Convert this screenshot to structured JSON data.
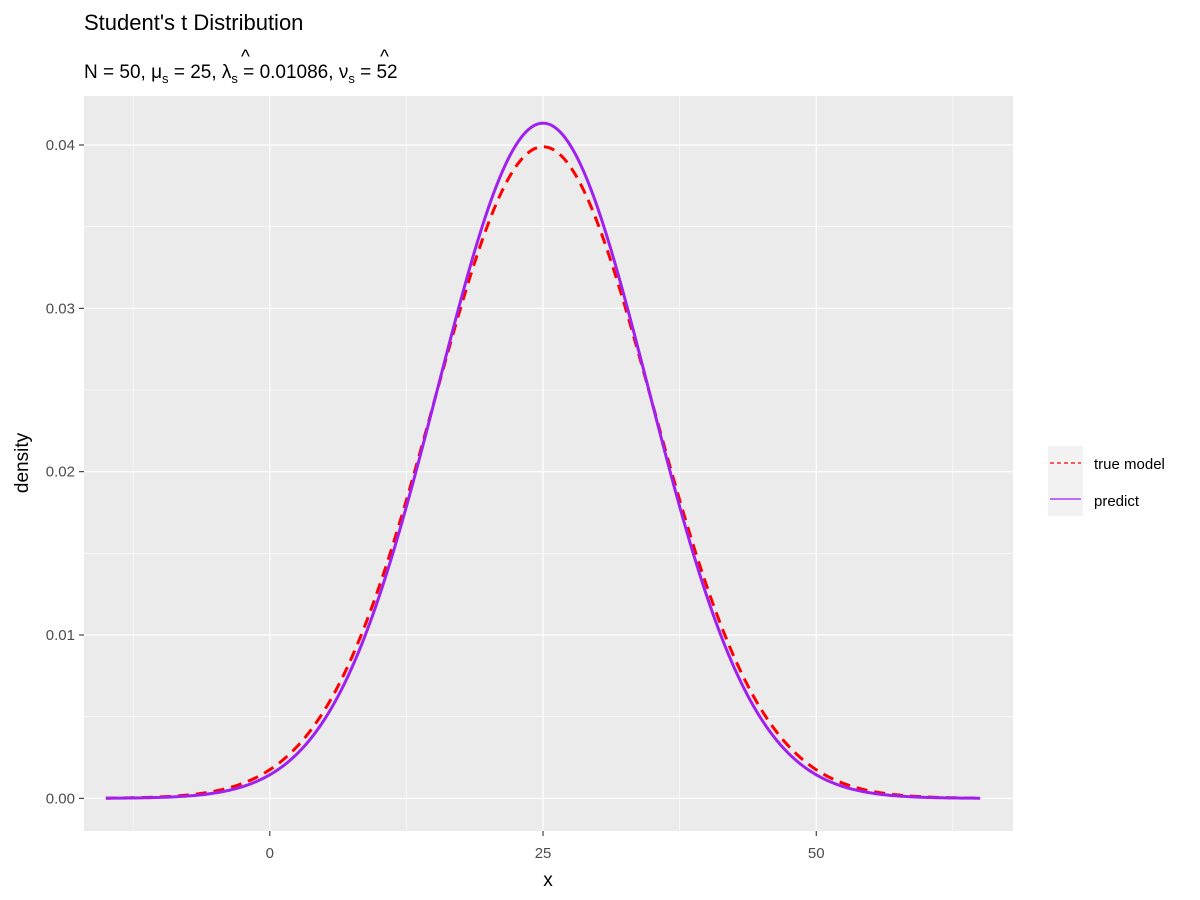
{
  "chart_data": {
    "type": "line",
    "title": "Student's t Distribution",
    "subtitle": {
      "n_label": "N",
      "n_value": "50",
      "mu_label": "μ",
      "mu_sub": "s",
      "mu_value": "25",
      "lambda_label": "λ",
      "lambda_sub": "s",
      "lambda_value": "0.01086",
      "nu_label": "ν",
      "nu_sub": "s",
      "nu_value": "52"
    },
    "xlabel": "x",
    "ylabel": "density",
    "xlim": [
      -17,
      68
    ],
    "ylim": [
      -0.002,
      0.043
    ],
    "x_ticks": [
      0,
      25,
      50
    ],
    "x_tick_labels": [
      "0",
      "25",
      "50"
    ],
    "x_minor_ticks": [
      -12.5,
      12.5,
      37.5,
      62.5
    ],
    "y_ticks": [
      0,
      0.01,
      0.02,
      0.03,
      0.04
    ],
    "y_tick_labels": [
      "0.00",
      "0.01",
      "0.02",
      "0.03",
      "0.04"
    ],
    "y_minor_ticks": [
      0.005,
      0.015,
      0.025,
      0.035
    ],
    "grid": true,
    "legend_position": "right",
    "x_range": [
      -15,
      65
    ],
    "series": [
      {
        "name": "true model",
        "linetype": "dashed",
        "color": "#ff0000",
        "distribution": "normal",
        "mean": 25,
        "sd": 10
      },
      {
        "name": "predict",
        "linetype": "solid",
        "color": "#a020f0",
        "distribution": "normal",
        "mean": 25,
        "sd": 9.65
      }
    ]
  }
}
